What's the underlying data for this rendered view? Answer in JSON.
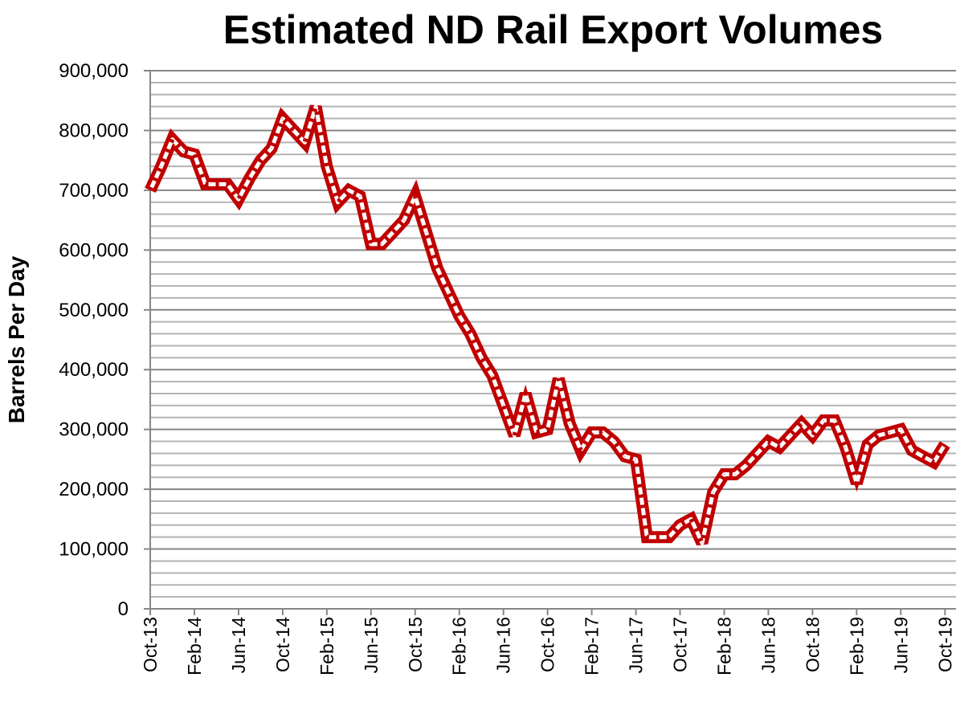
{
  "chart_data": {
    "type": "line",
    "title": "Estimated ND Rail Export Volumes",
    "xlabel": "",
    "ylabel": "Barrels Per Day",
    "ylim": [
      0,
      900000
    ],
    "yticks": [
      0,
      100000,
      200000,
      300000,
      400000,
      500000,
      600000,
      700000,
      800000,
      900000
    ],
    "ytick_labels": [
      "0",
      "100,000",
      "200,000",
      "300,000",
      "400,000",
      "500,000",
      "600,000",
      "700,000",
      "800,000",
      "900,000"
    ],
    "grid": true,
    "x_start": "Oct-13",
    "xtick_labels": [
      "Oct-13",
      "Feb-14",
      "Jun-14",
      "Oct-14",
      "Feb-15",
      "Jun-15",
      "Oct-15",
      "Feb-16",
      "Jun-16",
      "Oct-16",
      "Feb-17",
      "Jun-17",
      "Oct-17",
      "Feb-18",
      "Jun-18",
      "Oct-18",
      "Feb-19",
      "Jun-19",
      "Oct-19"
    ],
    "line_color": "#c00000",
    "series": [
      {
        "name": "Estimated ND Rail Export Volumes",
        "values": [
          700000,
          740000,
          785000,
          765000,
          760000,
          710000,
          710000,
          710000,
          685000,
          720000,
          750000,
          770000,
          820000,
          800000,
          780000,
          840000,
          740000,
          680000,
          700000,
          690000,
          610000,
          610000,
          630000,
          650000,
          690000,
          630000,
          570000,
          530000,
          490000,
          460000,
          420000,
          390000,
          340000,
          290000,
          360000,
          295000,
          300000,
          385000,
          310000,
          265000,
          295000,
          295000,
          280000,
          255000,
          250000,
          120000,
          120000,
          120000,
          140000,
          150000,
          110000,
          195000,
          225000,
          225000,
          240000,
          260000,
          280000,
          270000,
          290000,
          310000,
          290000,
          315000,
          315000,
          270000,
          210000,
          275000,
          290000,
          295000,
          300000,
          265000,
          255000,
          245000,
          275000
        ]
      }
    ]
  }
}
